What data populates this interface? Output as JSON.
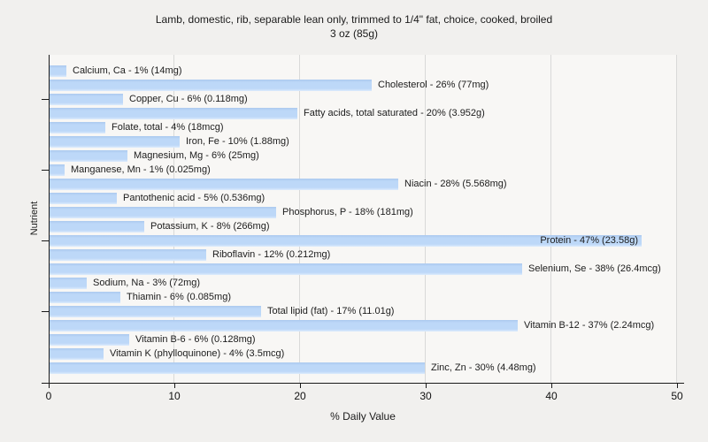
{
  "chart_data": {
    "type": "bar",
    "orientation": "horizontal",
    "title": "Lamb, domestic, rib, separable lean only, trimmed to 1/4\" fat, choice, cooked, broiled",
    "subtitle": "3 oz (85g)",
    "xlabel": "% Daily Value",
    "ylabel": "Nutrient",
    "xlim": [
      0,
      50
    ],
    "xticks": [
      0,
      10,
      20,
      30,
      40,
      50
    ],
    "grid": "vertical-gridlines-on",
    "legend": "none",
    "colors": {
      "bar_fill": "#bdd8f8",
      "bar_fill_top": "#abc9ef",
      "bar_fill_bottom": "#ddebfc",
      "grid_line": "#d9d9d8",
      "axis_line": "#1a1a1a",
      "plot_bg": "#f8f7f5",
      "page_bg": "#f1f0ee",
      "text": "#1c1c1c"
    },
    "points": [
      {
        "nutrient": "Calcium, Ca",
        "percent": 1,
        "amount": "14mg",
        "label": "Calcium, Ca - 1% (14mg)",
        "bar_percent": 1.4,
        "label_inside": false
      },
      {
        "nutrient": "Cholesterol",
        "percent": 26,
        "amount": "77mg",
        "label": "Cholesterol - 26% (77mg)",
        "bar_percent": 25.7,
        "label_inside": false
      },
      {
        "nutrient": "Copper, Cu",
        "percent": 6,
        "amount": "0.118mg",
        "label": "Copper, Cu - 6% (0.118mg)",
        "bar_percent": 5.9,
        "label_inside": false
      },
      {
        "nutrient": "Fatty acids, total saturated",
        "percent": 20,
        "amount": "3.952g",
        "label": "Fatty acids, total saturated - 20% (3.952g)",
        "bar_percent": 19.8,
        "label_inside": false
      },
      {
        "nutrient": "Folate, total",
        "percent": 4,
        "amount": "18mcg",
        "label": "Folate, total - 4% (18mcg)",
        "bar_percent": 4.5,
        "label_inside": false
      },
      {
        "nutrient": "Iron, Fe",
        "percent": 10,
        "amount": "1.88mg",
        "label": "Iron, Fe - 10% (1.88mg)",
        "bar_percent": 10.4,
        "label_inside": false
      },
      {
        "nutrient": "Magnesium, Mg",
        "percent": 6,
        "amount": "25mg",
        "label": "Magnesium, Mg - 6% (25mg)",
        "bar_percent": 6.3,
        "label_inside": false
      },
      {
        "nutrient": "Manganese, Mn",
        "percent": 1,
        "amount": "0.025mg",
        "label": "Manganese, Mn - 1% (0.025mg)",
        "bar_percent": 1.3,
        "label_inside": false
      },
      {
        "nutrient": "Niacin",
        "percent": 28,
        "amount": "5.568mg",
        "label": "Niacin - 28% (5.568mg)",
        "bar_percent": 27.8,
        "label_inside": false
      },
      {
        "nutrient": "Pantothenic acid",
        "percent": 5,
        "amount": "0.536mg",
        "label": "Pantothenic acid - 5% (0.536mg)",
        "bar_percent": 5.4,
        "label_inside": false
      },
      {
        "nutrient": "Phosphorus, P",
        "percent": 18,
        "amount": "181mg",
        "label": "Phosphorus, P - 18% (181mg)",
        "bar_percent": 18.1,
        "label_inside": false
      },
      {
        "nutrient": "Potassium, K",
        "percent": 8,
        "amount": "266mg",
        "label": "Potassium, K - 8% (266mg)",
        "bar_percent": 7.6,
        "label_inside": false
      },
      {
        "nutrient": "Protein",
        "percent": 47,
        "amount": "23.58g",
        "label": "Protein - 47% (23.58g)",
        "bar_percent": 47.2,
        "label_inside": true
      },
      {
        "nutrient": "Riboflavin",
        "percent": 12,
        "amount": "0.212mg",
        "label": "Riboflavin - 12% (0.212mg)",
        "bar_percent": 12.5,
        "label_inside": false
      },
      {
        "nutrient": "Selenium, Se",
        "percent": 38,
        "amount": "26.4mcg",
        "label": "Selenium, Se - 38% (26.4mcg)",
        "bar_percent": 37.7,
        "label_inside": false
      },
      {
        "nutrient": "Sodium, Na",
        "percent": 3,
        "amount": "72mg",
        "label": "Sodium, Na - 3% (72mg)",
        "bar_percent": 3.0,
        "label_inside": false
      },
      {
        "nutrient": "Thiamin",
        "percent": 6,
        "amount": "0.085mg",
        "label": "Thiamin - 6% (0.085mg)",
        "bar_percent": 5.7,
        "label_inside": false
      },
      {
        "nutrient": "Total lipid (fat)",
        "percent": 17,
        "amount": "11.01g",
        "label": "Total lipid (fat) - 17% (11.01g)",
        "bar_percent": 16.9,
        "label_inside": false
      },
      {
        "nutrient": "Vitamin B-12",
        "percent": 37,
        "amount": "2.24mcg",
        "label": "Vitamin B-12 - 37% (2.24mcg)",
        "bar_percent": 37.3,
        "label_inside": false
      },
      {
        "nutrient": "Vitamin B-6",
        "percent": 6,
        "amount": "0.128mg",
        "label": "Vitamin B-6 - 6% (0.128mg)",
        "bar_percent": 6.4,
        "label_inside": false
      },
      {
        "nutrient": "Vitamin K (phylloquinone)",
        "percent": 4,
        "amount": "3.5mcg",
        "label": "Vitamin K (phylloquinone) - 4% (3.5mcg)",
        "bar_percent": 4.4,
        "label_inside": false
      },
      {
        "nutrient": "Zinc, Zn",
        "percent": 30,
        "amount": "4.48mg",
        "label": "Zinc, Zn - 30% (4.48mg)",
        "bar_percent": 29.9,
        "label_inside": false
      }
    ]
  }
}
